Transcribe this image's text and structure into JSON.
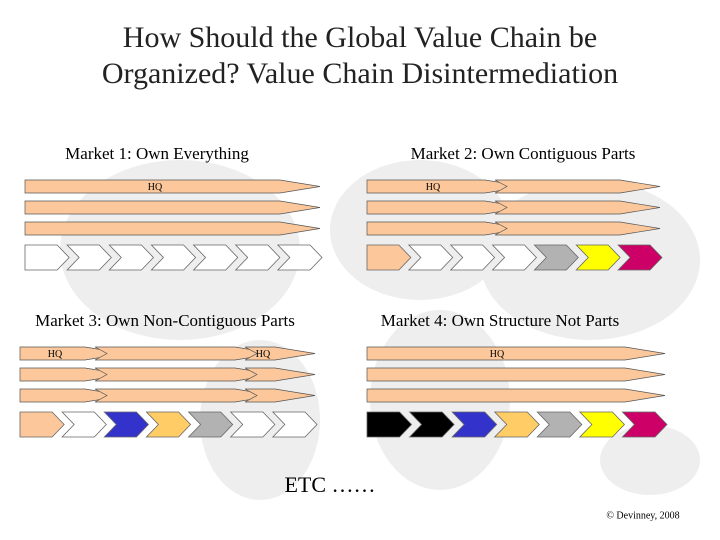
{
  "title": [
    "How Should the Global Value Chain be",
    "Organized? Value Chain Disintermediation"
  ],
  "panels": [
    {
      "label": "Market 1: Own Everything",
      "hq": [
        "HQ"
      ],
      "chevrons": [
        "#ffffff",
        "#ffffff",
        "#ffffff",
        "#ffffff",
        "#ffffff",
        "#ffffff",
        "#ffffff"
      ]
    },
    {
      "label": "Market 2: Own Contiguous Parts",
      "hq": [
        "HQ"
      ],
      "chevrons": [
        "#fcc89b",
        "#ffffff",
        "#ffffff",
        "#ffffff",
        "#b2b2b2",
        "#ffff00",
        "#cc0066"
      ]
    },
    {
      "label": "Market 3: Own Non-Contiguous Parts",
      "hq": [
        "HQ",
        "HQ"
      ],
      "chevrons": [
        "#fcc89b",
        "#ffffff",
        "#3333cc",
        "#ffcc66",
        "#b2b2b2",
        "#ffffff",
        "#ffffff"
      ]
    },
    {
      "label": "Market 4: Own Structure Not Parts",
      "hq": [
        "HQ"
      ],
      "chevrons": [
        "#000000",
        "#000000",
        "#3333cc",
        "#ffcc66",
        "#b2b2b2",
        "#ffff00",
        "#cc0066"
      ]
    }
  ],
  "footer": {
    "etc": "ETC ……",
    "copyright": "© Devinney, 2008"
  }
}
